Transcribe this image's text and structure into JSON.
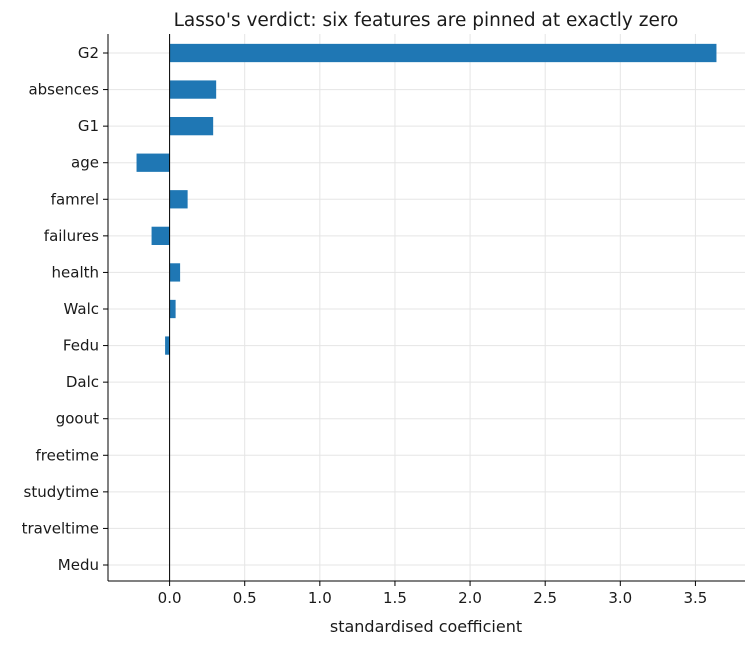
{
  "chart_data": {
    "type": "bar",
    "orientation": "horizontal",
    "title": "Lasso's verdict: six features are pinned at exactly zero",
    "xlabel": "standardised coefficient",
    "ylabel": "",
    "categories": [
      "G2",
      "absences",
      "G1",
      "age",
      "famrel",
      "failures",
      "health",
      "Walc",
      "Fedu",
      "Dalc",
      "goout",
      "freetime",
      "studytime",
      "traveltime",
      "Medu"
    ],
    "values": [
      3.64,
      0.31,
      0.29,
      -0.22,
      0.12,
      -0.12,
      0.07,
      0.04,
      -0.03,
      0.0,
      0.0,
      0.0,
      0.0,
      0.0,
      0.0
    ],
    "xlim": [
      -0.41,
      3.83
    ],
    "xticks": [
      0.0,
      0.5,
      1.0,
      1.5,
      2.0,
      2.5,
      3.0,
      3.5
    ],
    "xtick_labels": [
      "0.0",
      "0.5",
      "1.0",
      "1.5",
      "2.0",
      "2.5",
      "3.0",
      "3.5"
    ],
    "grid": true,
    "zero_line": true,
    "legend": "none",
    "bar_color": "#1f77b4",
    "grid_color": "#e5e5e5"
  }
}
